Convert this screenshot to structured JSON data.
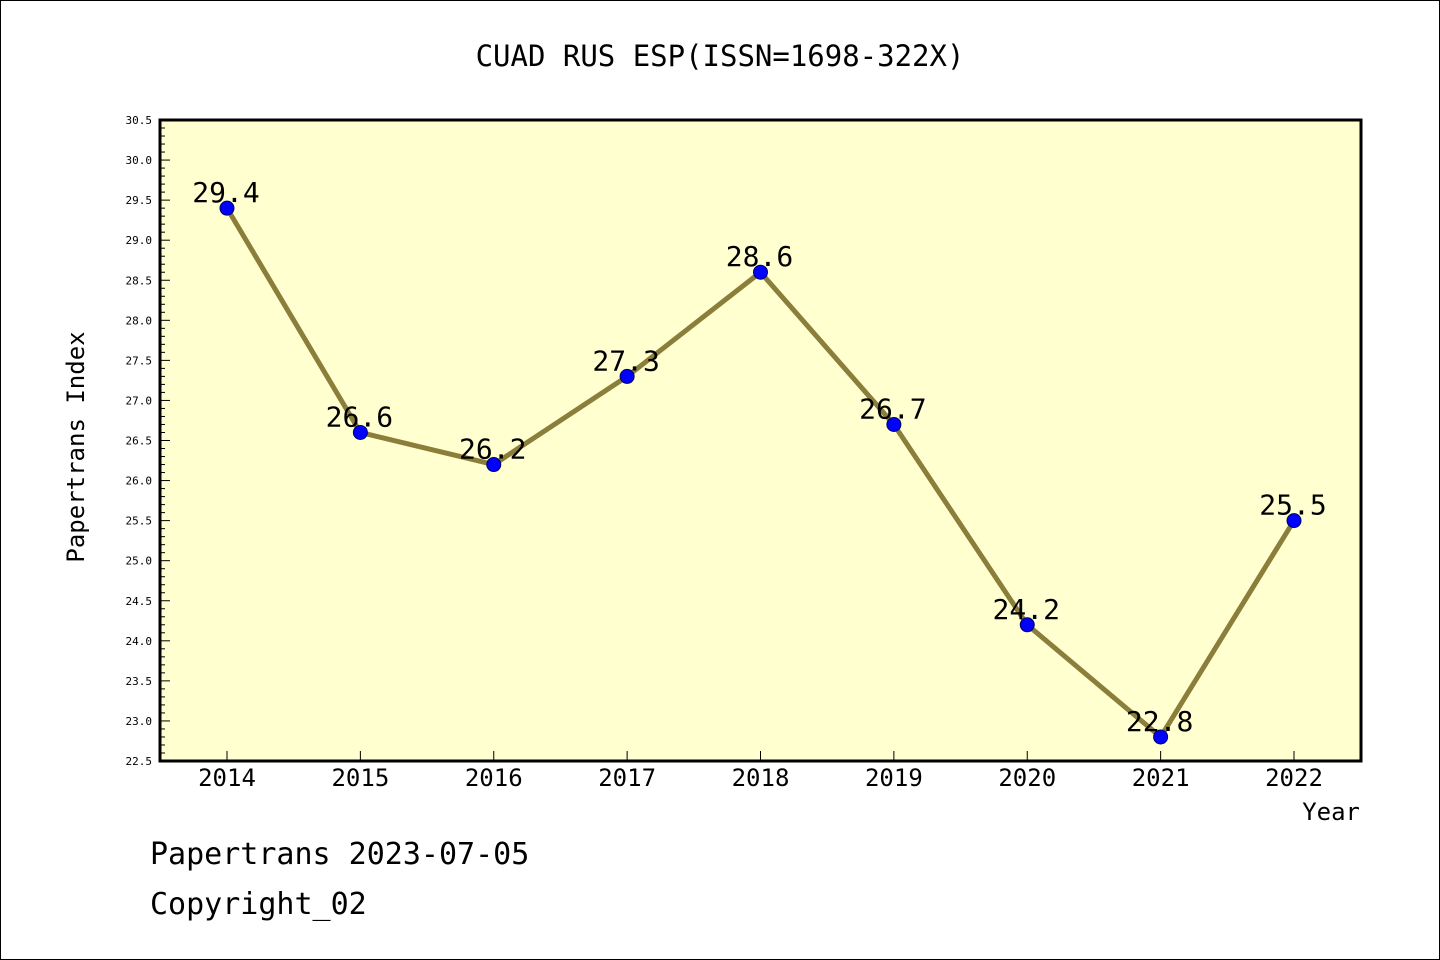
{
  "chart_data": {
    "type": "line",
    "title": "CUAD RUS ESP(ISSN=1698-322X)",
    "xlabel": "Year",
    "ylabel": "Papertrans Index",
    "categories": [
      "2014",
      "2015",
      "2016",
      "2017",
      "2018",
      "2019",
      "2020",
      "2021",
      "2022"
    ],
    "values": [
      29.4,
      26.6,
      26.2,
      27.3,
      28.6,
      26.7,
      24.2,
      22.8,
      25.5
    ],
    "data_labels": [
      "29.4",
      "26.6",
      "26.2",
      "27.3",
      "28.6",
      "26.7",
      "24.2",
      "22.8",
      "25.5"
    ],
    "ylim": [
      22.5,
      30.5
    ],
    "y_ticks": [
      "22.5",
      "23.0",
      "23.5",
      "24.0",
      "24.5",
      "25.0",
      "25.5",
      "26.0",
      "26.5",
      "27.0",
      "27.5",
      "28.0",
      "28.5",
      "29.0",
      "29.5",
      "30.0",
      "30.5"
    ],
    "grid": false,
    "legend": "none",
    "colors": {
      "plot_background": "#ffffd0",
      "line": "#8b7d3a",
      "marker": "#0000ff",
      "marker_edge": "#000066"
    }
  },
  "footer": {
    "date_line": "Papertrans 2023-07-05",
    "copyright": "Copyright_02"
  }
}
